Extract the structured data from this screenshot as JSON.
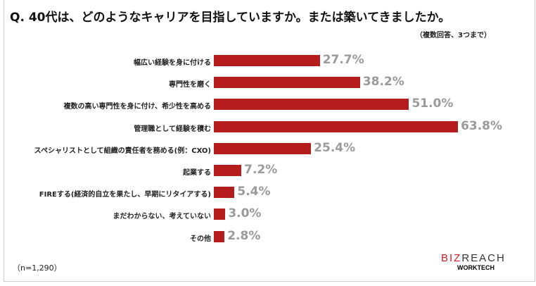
{
  "title": "Q. 40代は、どのようなキャリアを目指していますか。または築いてきましたか。",
  "subtitle": "（複数回答、3つまで）",
  "sample_note": "（n=1,290）",
  "logo": {
    "brand_red": "BIZ",
    "brand_dark": "REACH",
    "sub": "WORKTECH"
  },
  "colors": {
    "bar": "#b51c1c",
    "value_label": "#9a9a9a"
  },
  "chart_data": {
    "type": "bar",
    "orientation": "horizontal",
    "categories": [
      "幅広い経験を身に付ける",
      "専門性を磨く",
      "複数の高い専門性を身に付け、希少性を高める",
      "管理職として経験を積む",
      "スペシャリストとして組織の責任者を務める(例：CXO)",
      "起業する",
      "FIREする(経済的自立を果たし、早期にリタイアする)",
      "まだわからない、考えていない",
      "その他"
    ],
    "values": [
      27.7,
      38.2,
      51.0,
      63.8,
      25.4,
      7.2,
      5.4,
      3.0,
      2.8
    ],
    "value_labels": [
      "27.7%",
      "38.2%",
      "51.0%",
      "63.8%",
      "25.4%",
      "7.2%",
      "5.4%",
      "3.0%",
      "2.8%"
    ],
    "unit": "%",
    "grid": false
  }
}
